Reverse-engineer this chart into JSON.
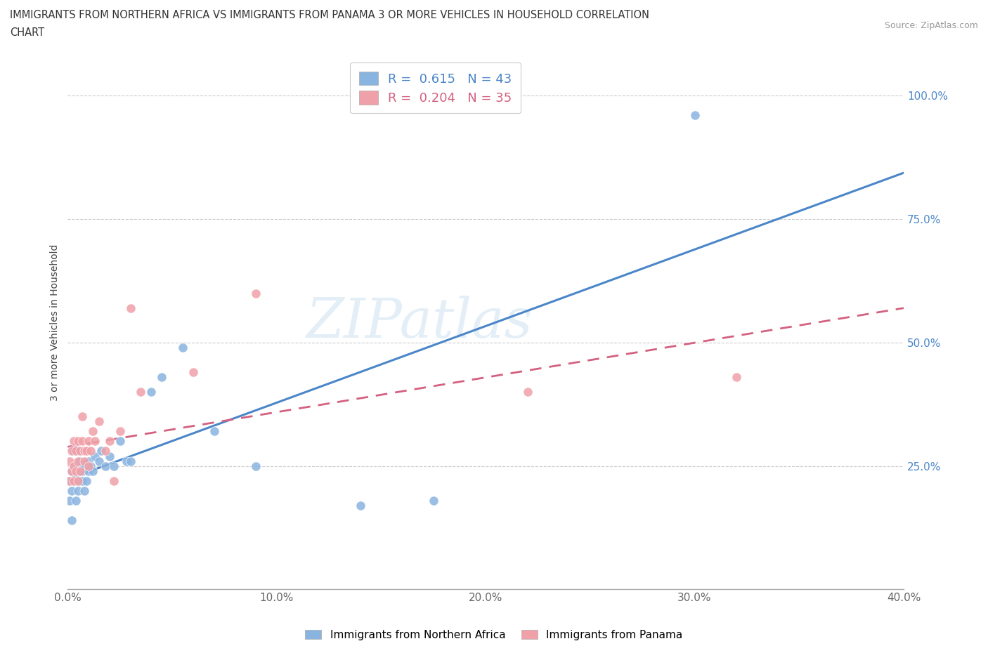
{
  "title_line1": "IMMIGRANTS FROM NORTHERN AFRICA VS IMMIGRANTS FROM PANAMA 3 OR MORE VEHICLES IN HOUSEHOLD CORRELATION",
  "title_line2": "CHART",
  "source": "Source: ZipAtlas.com",
  "ylabel": "3 or more Vehicles in Household",
  "xlim": [
    0.0,
    0.4
  ],
  "ylim": [
    0.0,
    1.08
  ],
  "xtick_vals": [
    0.0,
    0.1,
    0.2,
    0.3,
    0.4
  ],
  "xtick_labels": [
    "0.0%",
    "10.0%",
    "20.0%",
    "30.0%",
    "40.0%"
  ],
  "ytick_vals": [
    0.25,
    0.5,
    0.75,
    1.0
  ],
  "ytick_labels": [
    "25.0%",
    "50.0%",
    "75.0%",
    "100.0%"
  ],
  "R_blue": 0.615,
  "N_blue": 43,
  "R_pink": 0.204,
  "N_pink": 35,
  "blue_color": "#8ab4e0",
  "pink_color": "#f0a0a8",
  "blue_line_color": "#4a86c8",
  "pink_line_color": "#d46080",
  "watermark": "ZIPatlas",
  "legend_label_blue": "Immigrants from Northern Africa",
  "legend_label_pink": "Immigrants from Panama",
  "scatter_blue_x": [
    0.001,
    0.001,
    0.002,
    0.002,
    0.002,
    0.003,
    0.003,
    0.003,
    0.004,
    0.004,
    0.004,
    0.005,
    0.005,
    0.005,
    0.005,
    0.006,
    0.006,
    0.007,
    0.007,
    0.008,
    0.008,
    0.009,
    0.01,
    0.01,
    0.011,
    0.012,
    0.013,
    0.015,
    0.016,
    0.018,
    0.02,
    0.022,
    0.025,
    0.028,
    0.03,
    0.04,
    0.045,
    0.055,
    0.07,
    0.09,
    0.14,
    0.175,
    0.3
  ],
  "scatter_blue_y": [
    0.18,
    0.22,
    0.2,
    0.24,
    0.14,
    0.22,
    0.25,
    0.28,
    0.22,
    0.24,
    0.18,
    0.2,
    0.25,
    0.22,
    0.28,
    0.22,
    0.26,
    0.24,
    0.22,
    0.25,
    0.2,
    0.22,
    0.24,
    0.26,
    0.25,
    0.24,
    0.27,
    0.26,
    0.28,
    0.25,
    0.27,
    0.25,
    0.3,
    0.26,
    0.26,
    0.4,
    0.43,
    0.49,
    0.32,
    0.25,
    0.17,
    0.18,
    0.96
  ],
  "scatter_pink_x": [
    0.001,
    0.001,
    0.002,
    0.002,
    0.003,
    0.003,
    0.003,
    0.004,
    0.004,
    0.005,
    0.005,
    0.005,
    0.006,
    0.006,
    0.007,
    0.007,
    0.008,
    0.008,
    0.009,
    0.01,
    0.01,
    0.011,
    0.012,
    0.013,
    0.015,
    0.018,
    0.02,
    0.022,
    0.025,
    0.03,
    0.035,
    0.06,
    0.09,
    0.22,
    0.32
  ],
  "scatter_pink_y": [
    0.22,
    0.26,
    0.24,
    0.28,
    0.25,
    0.3,
    0.22,
    0.24,
    0.28,
    0.26,
    0.3,
    0.22,
    0.28,
    0.24,
    0.3,
    0.35,
    0.26,
    0.28,
    0.28,
    0.25,
    0.3,
    0.28,
    0.32,
    0.3,
    0.34,
    0.28,
    0.3,
    0.22,
    0.32,
    0.57,
    0.4,
    0.44,
    0.6,
    0.4,
    0.43
  ]
}
